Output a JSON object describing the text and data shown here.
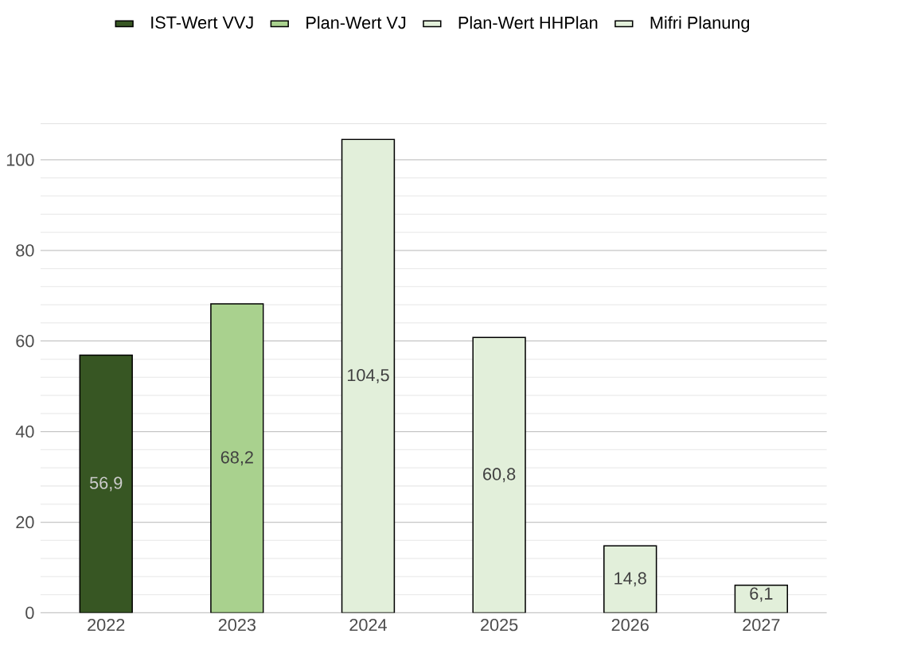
{
  "chart_data": {
    "type": "bar",
    "categories": [
      "2022",
      "2023",
      "2024",
      "2025",
      "2026",
      "2027"
    ],
    "series": [
      {
        "name": "IST-Wert VVJ",
        "color": "#375623",
        "values": [
          56.9,
          null,
          null,
          null,
          null,
          null
        ],
        "value_labels": [
          "56,9",
          null,
          null,
          null,
          null,
          null
        ]
      },
      {
        "name": "Plan-Wert VJ",
        "color": "#a9d18e",
        "values": [
          null,
          68.2,
          null,
          null,
          null,
          null
        ],
        "value_labels": [
          null,
          "68,2",
          null,
          null,
          null,
          null
        ]
      },
      {
        "name": "Plan-Wert HHPlan",
        "color": "#e2efda",
        "values": [
          null,
          null,
          104.5,
          null,
          null,
          null
        ],
        "value_labels": [
          null,
          null,
          "104,5",
          null,
          null,
          null
        ]
      },
      {
        "name": "Mifri Planung",
        "color": "#e2efda",
        "values": [
          null,
          null,
          null,
          60.8,
          14.8,
          6.1
        ],
        "value_labels": [
          null,
          null,
          null,
          "60,8",
          "14,8",
          "6,1"
        ]
      }
    ],
    "ylim": [
      0,
      108
    ],
    "yticks": [
      0,
      20,
      40,
      60,
      80,
      100
    ],
    "grid": "y",
    "legend": "top"
  }
}
